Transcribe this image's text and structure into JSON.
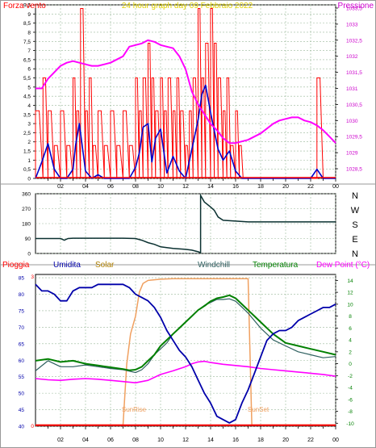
{
  "chart_data": [
    {
      "type": "line",
      "title": "24 hour graph day   09 Febbraio 2022",
      "left_axis_label": "Forza vento",
      "right_axis_label": "Pressione",
      "x": {
        "ticks": [
          "02",
          "04",
          "06",
          "08",
          "10",
          "12",
          "14",
          "16",
          "18",
          "20",
          "22",
          "00"
        ],
        "range": [
          0,
          24
        ]
      },
      "y_left": {
        "ticks": [
          "0",
          "0,5",
          "1",
          "1,5",
          "2",
          "2,5",
          "3",
          "3,5",
          "4",
          "4,5",
          "5",
          "5,5",
          "6",
          "6,5",
          "7",
          "7,5",
          "8",
          "8,5",
          "9",
          "9,5"
        ],
        "range": [
          0,
          9.5
        ]
      },
      "y_right": {
        "ticks": [
          "1028,5",
          "1029",
          "1029,5",
          "1030",
          "1030,5",
          "1031",
          "1031,5",
          "1032",
          "1032,5",
          "1033",
          "1033,5"
        ],
        "range": [
          1028.2,
          1033.6
        ]
      },
      "grid": true,
      "series": [
        {
          "name": "Forza vento",
          "axis": "left",
          "color": "#ff0000",
          "x": [
            0,
            0.6,
            1,
            1.5,
            2,
            2.5,
            3,
            3.3,
            3.6,
            4,
            4.3,
            4.6,
            5,
            5.5,
            6,
            6.5,
            7,
            7.5,
            8,
            8.3,
            8.6,
            9,
            9.3,
            9.6,
            10,
            10.3,
            10.6,
            11,
            11.3,
            11.6,
            12,
            12.3,
            12.6,
            13,
            13.3,
            13.6,
            14,
            14.3,
            14.6,
            15,
            15.3,
            15.6,
            16,
            16.3,
            16.6,
            17,
            18,
            19,
            20,
            21,
            22,
            22.5,
            23,
            24
          ],
          "y": [
            3.7,
            5.5,
            3.7,
            1.8,
            3.7,
            1.8,
            5.5,
            3.7,
            9.3,
            3.7,
            5.5,
            1.8,
            3.7,
            1.8,
            3.7,
            1.8,
            3.7,
            1.8,
            5.5,
            3.7,
            5.5,
            7.4,
            5.5,
            3.7,
            5.5,
            3.7,
            5.5,
            3.7,
            5.5,
            3.7,
            1.8,
            3.7,
            5.5,
            9.3,
            5.5,
            7.4,
            9.3,
            7.4,
            5.5,
            3.7,
            5.5,
            1.8,
            3.7,
            1.8,
            0,
            0,
            0,
            0,
            0,
            0,
            0,
            5.5,
            0,
            0
          ]
        },
        {
          "name": "Raffica",
          "axis": "left",
          "color": "#0000cc",
          "x": [
            0,
            0.5,
            1,
            1.5,
            2,
            2.5,
            3,
            3.2,
            3.5,
            4,
            4.5,
            5,
            5.5,
            6,
            6.5,
            7,
            7.5,
            8,
            8.3,
            8.6,
            9,
            9.3,
            9.6,
            10,
            10.5,
            11,
            11.5,
            12,
            12.5,
            13,
            13.3,
            13.6,
            14,
            14.3,
            14.6,
            15,
            15.5,
            16,
            16.5,
            17,
            18,
            19,
            20,
            21,
            22,
            22.5,
            23,
            24
          ],
          "y": [
            0,
            0.9,
            1.9,
            0.5,
            0,
            0,
            0.5,
            1.8,
            3.0,
            0.4,
            0,
            0.2,
            0,
            0,
            0,
            0,
            0,
            0.6,
            1.4,
            2.8,
            3.0,
            0.9,
            2.2,
            2.7,
            0.3,
            1.2,
            0.4,
            0,
            1.6,
            3.2,
            4.6,
            5.1,
            3.6,
            2.6,
            1.6,
            1.0,
            1.5,
            0.4,
            0,
            0,
            0,
            0,
            0,
            0,
            0,
            0.5,
            0,
            0
          ]
        },
        {
          "name": "Pressione",
          "axis": "right",
          "color": "#ff00ff",
          "x": [
            0,
            0.5,
            1,
            1.5,
            2,
            2.5,
            3,
            3.5,
            4,
            4.5,
            5,
            5.5,
            6,
            6.5,
            7,
            7.5,
            8,
            8.5,
            9,
            9.5,
            10,
            10.5,
            11,
            11.5,
            12,
            12.5,
            13,
            13.5,
            14,
            14.5,
            15,
            15.5,
            16,
            16.5,
            17,
            17.5,
            18,
            18.5,
            19,
            19.5,
            20,
            20.5,
            21,
            21.5,
            22,
            22.5,
            23,
            23.5,
            24
          ],
          "y": [
            1031.0,
            1031.0,
            1031.3,
            1031.5,
            1031.7,
            1031.8,
            1031.85,
            1031.8,
            1031.75,
            1031.7,
            1031.7,
            1031.75,
            1031.8,
            1031.9,
            1032.0,
            1032.3,
            1032.35,
            1032.4,
            1032.5,
            1032.45,
            1032.35,
            1032.3,
            1032.25,
            1032.0,
            1031.6,
            1030.9,
            1030.5,
            1030.2,
            1029.9,
            1029.7,
            1029.45,
            1029.3,
            1029.3,
            1029.35,
            1029.4,
            1029.5,
            1029.6,
            1029.75,
            1029.9,
            1030.0,
            1030.05,
            1030.1,
            1030.1,
            1030.0,
            1029.95,
            1029.85,
            1029.7,
            1029.5,
            1029.3
          ]
        }
      ]
    },
    {
      "type": "line",
      "title": "",
      "y_left": {
        "ticks": [
          "360",
          "270",
          "180",
          "90",
          "0"
        ],
        "range": [
          0,
          360
        ]
      },
      "compass_labels": [
        "N",
        "W",
        "S",
        "E",
        "N"
      ],
      "grid": true,
      "series": [
        {
          "name": "Direzione vento",
          "color": "#0a3030",
          "x": [
            0,
            1,
            2,
            2.3,
            2.6,
            3,
            4,
            5,
            6,
            7,
            8,
            8.5,
            9,
            9.5,
            10,
            11,
            12,
            12.5,
            13,
            13.2,
            13.2,
            13.5,
            14,
            14.3,
            14.6,
            15,
            16,
            17,
            18,
            20,
            22,
            24
          ],
          "y": [
            90,
            90,
            90,
            80,
            90,
            92,
            92,
            92,
            92,
            92,
            90,
            80,
            65,
            55,
            40,
            30,
            25,
            20,
            10,
            5,
            350,
            310,
            280,
            260,
            220,
            200,
            195,
            190,
            190,
            190,
            190,
            190
          ]
        }
      ]
    },
    {
      "type": "line",
      "title": "",
      "legend": [
        {
          "name": "Pioggia",
          "color": "#ff0000"
        },
        {
          "name": "Umidita",
          "color": "#0000aa"
        },
        {
          "name": "Solar",
          "color": "#b08000"
        },
        {
          "name": "Windchill",
          "color": "#2f6060"
        },
        {
          "name": "Temperatura",
          "color": "#008000"
        },
        {
          "name": "Dew Point (°C)",
          "color": "#ff00ff"
        }
      ],
      "y_left": {
        "ticks": [
          "40",
          "45",
          "50",
          "55",
          "60",
          "65",
          "70",
          "75",
          "80",
          "85"
        ],
        "range": [
          40,
          86
        ]
      },
      "y_right": {
        "ticks": [
          "-10",
          "-8",
          "-6",
          "-4",
          "-2",
          "0",
          "2",
          "4",
          "6",
          "8",
          "10",
          "12",
          "14"
        ],
        "range": [
          -10.5,
          15
        ]
      },
      "x": {
        "ticks": [
          "02",
          "04",
          "06",
          "08",
          "10",
          "12",
          "14",
          "16",
          "18",
          "20",
          "22",
          "00"
        ],
        "range": [
          0,
          24
        ]
      },
      "annotations": [
        "SunRise",
        "SunSet"
      ],
      "grid": true,
      "series": [
        {
          "name": "Pioggia",
          "axis": "left",
          "color": "#ff0000",
          "x": [
            0,
            24
          ],
          "y": [
            40.3,
            40.3
          ]
        },
        {
          "name": "Umidita",
          "axis": "left",
          "color": "#0000aa",
          "x": [
            0,
            0.5,
            1,
            1.5,
            2,
            2.5,
            3,
            3.5,
            4,
            4.5,
            5,
            5.5,
            6,
            6.5,
            7,
            7.5,
            8,
            8.5,
            9,
            9.5,
            10,
            10.5,
            11,
            11.5,
            12,
            12.5,
            13,
            13.5,
            14,
            14.5,
            15,
            15.5,
            16,
            16.5,
            17,
            17.5,
            18,
            18.5,
            19,
            19.5,
            20,
            20.5,
            21,
            21.5,
            22,
            22.5,
            23,
            23.5,
            24
          ],
          "y": [
            83,
            81,
            81,
            80,
            78,
            78,
            81,
            82,
            82,
            82,
            83,
            83,
            83,
            83,
            83,
            82,
            80,
            79,
            78,
            76,
            73,
            69,
            66,
            63,
            61,
            58,
            54,
            50,
            47,
            43,
            42,
            41,
            42,
            47,
            51,
            56,
            61,
            66,
            68,
            69,
            69,
            70,
            72,
            73,
            74,
            75,
            76,
            76,
            77
          ]
        },
        {
          "name": "Solar",
          "axis": "right",
          "color": "#f0a060",
          "x": [
            0,
            7,
            7.3,
            7.6,
            8,
            8.3,
            8.6,
            9,
            10,
            11,
            12,
            13,
            14,
            15,
            16,
            17,
            17.3,
            17.5,
            24
          ],
          "y": [
            -10.3,
            -10.3,
            0,
            5,
            8,
            12,
            13.5,
            14,
            14.2,
            14.3,
            14.3,
            14.3,
            14.3,
            14.3,
            14.3,
            14.3,
            -10.3,
            -10.3,
            -10.3
          ]
        },
        {
          "name": "Windchill",
          "axis": "right",
          "color": "#2f6060",
          "x": [
            0,
            1,
            2,
            3,
            4,
            5,
            6,
            7,
            8,
            8.5,
            9,
            9.5,
            10,
            10.5,
            11,
            11.5,
            12,
            12.5,
            13,
            13.5,
            14,
            14.5,
            15,
            15.5,
            16,
            16.5,
            17,
            18,
            19,
            20,
            21,
            22,
            23,
            24
          ],
          "y": [
            -1.2,
            0.5,
            -0.5,
            -0.5,
            -0.2,
            -0.5,
            -0.8,
            -1,
            -1.5,
            -1,
            0,
            1.5,
            2.5,
            3.5,
            5,
            6,
            7,
            8,
            9,
            9.8,
            10.3,
            10.8,
            10.8,
            10.9,
            10.5,
            9.5,
            8.5,
            6,
            4,
            3,
            2,
            1.5,
            1,
            1.2
          ]
        },
        {
          "name": "Temperatura",
          "axis": "right",
          "color": "#008000",
          "x": [
            0,
            1,
            2,
            3,
            4,
            5,
            6,
            7,
            7.5,
            8,
            8.5,
            9,
            9.5,
            10,
            10.5,
            11,
            11.5,
            12,
            12.5,
            13,
            13.5,
            14,
            14.5,
            15,
            15.5,
            16,
            16.5,
            17,
            17.5,
            18,
            19,
            20,
            21,
            22,
            23,
            24
          ],
          "y": [
            0.5,
            0.8,
            0.3,
            0.5,
            0,
            -0.3,
            -0.6,
            -0.9,
            -1.1,
            -1.0,
            -0.5,
            0.5,
            1.5,
            3,
            4,
            5,
            6,
            7,
            8,
            9,
            9.7,
            10.5,
            11,
            11.2,
            11.5,
            11,
            10,
            9,
            8,
            7,
            5,
            3.5,
            3,
            2.5,
            2,
            1.5
          ]
        },
        {
          "name": "Dew Point",
          "axis": "right",
          "color": "#ff00ff",
          "x": [
            0,
            1,
            2,
            3,
            4,
            5,
            6,
            7,
            8,
            9,
            10,
            11,
            12,
            12.5,
            13,
            13.5,
            14,
            15,
            16,
            17,
            18,
            19,
            20,
            21,
            22,
            23,
            24
          ],
          "y": [
            -2.5,
            -2.7,
            -2.8,
            -2.6,
            -2.5,
            -2.6,
            -2.8,
            -3.0,
            -3.2,
            -2.8,
            -1.8,
            -1.2,
            -0.5,
            0,
            0.3,
            0.4,
            0.2,
            -0.1,
            -0.3,
            -0.5,
            -0.8,
            -1.0,
            -1.2,
            -1.4,
            -1.6,
            -1.8,
            -2.1
          ]
        }
      ]
    }
  ]
}
